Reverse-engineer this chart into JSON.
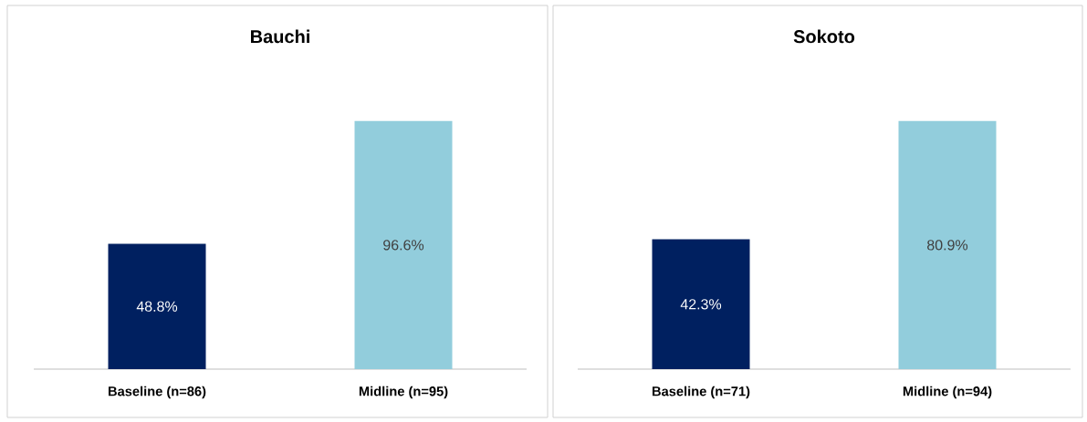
{
  "chart_data": [
    {
      "type": "bar",
      "title": "Bauchi",
      "categories": [
        "Baseline (n=86)",
        "Midline (n=95)"
      ],
      "values": [
        48.8,
        96.6
      ],
      "colors": [
        "#002060",
        "#92cddc"
      ],
      "value_labels": [
        "48.8%",
        "96.6%"
      ]
    },
    {
      "type": "bar",
      "title": "Sokoto",
      "categories": [
        "Baseline (n=71)",
        "Midline (n=94)"
      ],
      "values": [
        42.3,
        80.9
      ],
      "colors": [
        "#002060",
        "#92cddc"
      ],
      "value_labels": [
        "42.3%",
        "80.9%"
      ]
    }
  ]
}
